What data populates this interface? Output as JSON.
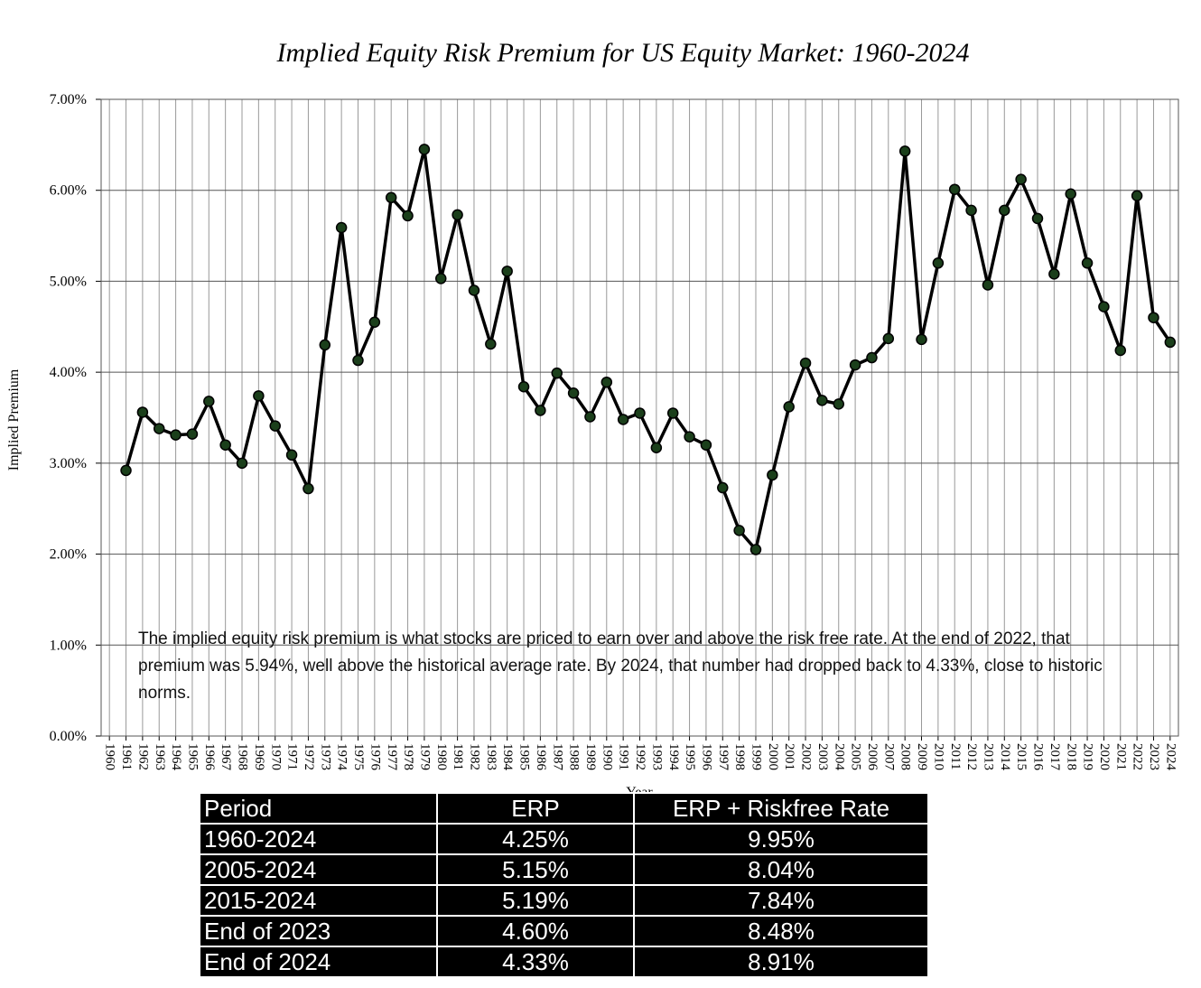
{
  "chart_data": {
    "type": "line",
    "title": "Implied Equity Risk Premium for US Equity Market: 1960-2024",
    "x_label": "Year",
    "y_label": "Implied Premium",
    "annotation": "The implied equity risk premium is what stocks are priced to earn over and above the risk free rate. At the end of 2022, that premium was 5.94%, well above the historical average rate. By 2024, that number had dropped back to 4.33%, close to historic norms.",
    "categories": [
      "1960",
      "1961",
      "1962",
      "1963",
      "1964",
      "1965",
      "1966",
      "1967",
      "1968",
      "1969",
      "1970",
      "1971",
      "1972",
      "1973",
      "1974",
      "1975",
      "1976",
      "1977",
      "1978",
      "1979",
      "1980",
      "1981",
      "1982",
      "1983",
      "1984",
      "1985",
      "1986",
      "1987",
      "1988",
      "1989",
      "1990",
      "1991",
      "1992",
      "1993",
      "1994",
      "1995",
      "1996",
      "1997",
      "1998",
      "1999",
      "2000",
      "2001",
      "2002",
      "2003",
      "2004",
      "2005",
      "2006",
      "2007",
      "2008",
      "2009",
      "2010",
      "2011",
      "2012",
      "2013",
      "2014",
      "2015",
      "2016",
      "2017",
      "2018",
      "2019",
      "2020",
      "2021",
      "2022",
      "2023",
      "2024"
    ],
    "series": [
      {
        "name": "Implied Premium",
        "color": "#000000",
        "marker_color": "#1b3f1b",
        "values": [
          null,
          2.92,
          3.56,
          3.38,
          3.31,
          3.32,
          3.68,
          3.2,
          3.0,
          3.74,
          3.41,
          3.09,
          2.72,
          4.3,
          5.59,
          4.13,
          4.55,
          5.92,
          5.72,
          6.45,
          5.03,
          5.73,
          4.9,
          4.31,
          5.11,
          3.84,
          3.58,
          3.99,
          3.77,
          3.51,
          3.89,
          3.48,
          3.55,
          3.17,
          3.55,
          3.29,
          3.2,
          2.73,
          2.26,
          2.05,
          2.87,
          3.62,
          4.1,
          3.69,
          3.65,
          4.08,
          4.16,
          4.37,
          6.43,
          4.36,
          5.2,
          6.01,
          5.78,
          4.96,
          5.78,
          6.12,
          5.69,
          5.08,
          5.96,
          5.2,
          4.72,
          4.24,
          5.94,
          4.6,
          4.33
        ]
      }
    ],
    "ylim": [
      0,
      7
    ],
    "yticks": [
      {
        "value": 0,
        "label": "0.00%"
      },
      {
        "value": 1,
        "label": "1.00%"
      },
      {
        "value": 2,
        "label": "2.00%"
      },
      {
        "value": 3,
        "label": "3.00%"
      },
      {
        "value": 4,
        "label": "4.00%"
      },
      {
        "value": 5,
        "label": "5.00%"
      },
      {
        "value": 6,
        "label": "6.00%"
      },
      {
        "value": 7,
        "label": "7.00%"
      }
    ],
    "grid": true
  },
  "table": {
    "header": [
      "Period",
      "ERP",
      "ERP + Riskfree Rate"
    ],
    "rows": [
      [
        "1960-2024",
        "4.25%",
        "9.95%"
      ],
      [
        "2005-2024",
        "5.15%",
        "8.04%"
      ],
      [
        "2015-2024",
        "5.19%",
        "7.84%"
      ],
      [
        "End of 2023",
        "4.60%",
        "8.48%"
      ],
      [
        "End of 2024",
        "4.33%",
        "8.91%"
      ]
    ]
  }
}
